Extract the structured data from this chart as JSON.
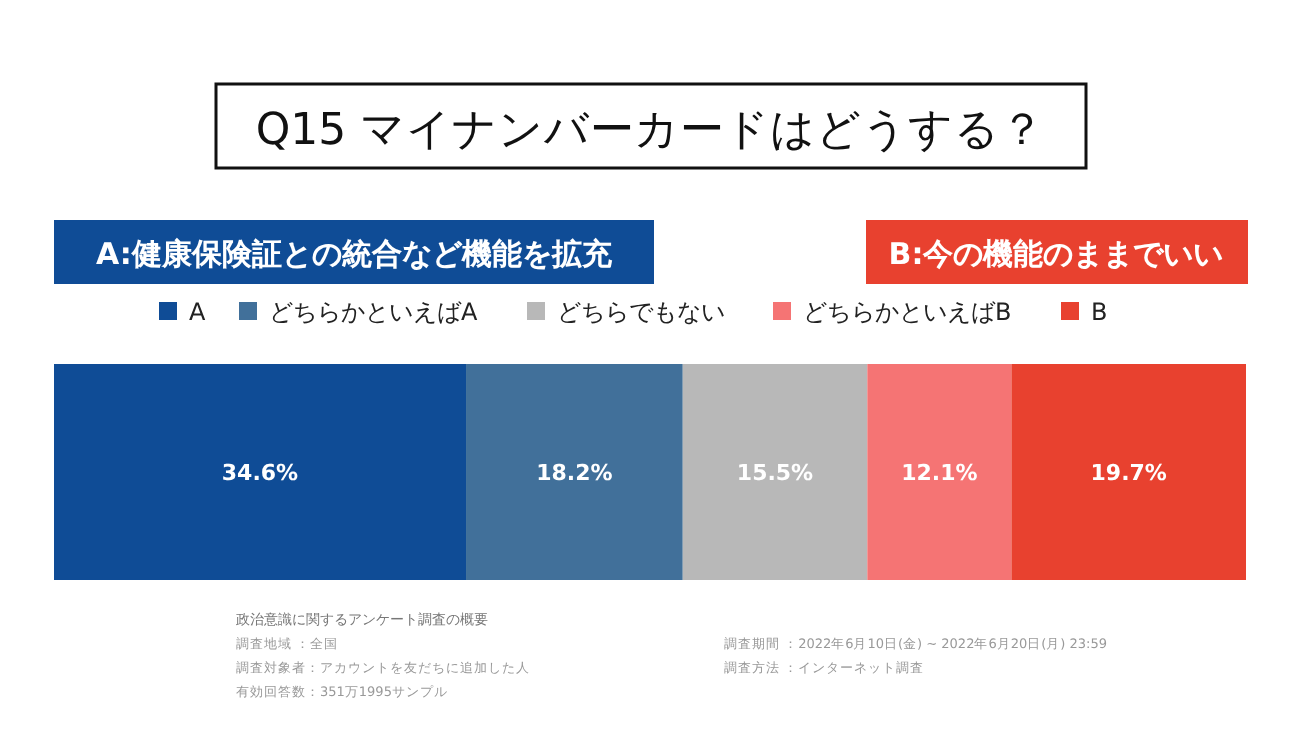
{
  "chart_data": {
    "type": "bar",
    "orientation": "horizontal",
    "stacked": true,
    "title": "Q15 マイナンバーカードはどうする？",
    "categories": [
      null
    ],
    "series": [
      {
        "name": "A",
        "color": "#0f4c96",
        "values": [
          34.6
        ],
        "value_labels": [
          "34.6%"
        ]
      },
      {
        "name": "どちらかといえばA",
        "color": "#41709a",
        "values": [
          18.2
        ],
        "value_labels": [
          "18.2%"
        ]
      },
      {
        "name": "どちらでもない",
        "color": "#b8b8b8",
        "values": [
          15.5
        ],
        "value_labels": [
          "15.5%"
        ]
      },
      {
        "name": "どちらかといえばB",
        "color": "#f57474",
        "values": [
          12.1
        ],
        "value_labels": [
          "12.1%"
        ]
      },
      {
        "name": "B",
        "color": "#e8412f",
        "values": [
          19.7
        ],
        "value_labels": [
          "19.7%"
        ]
      }
    ],
    "xlim": [
      0,
      100.1
    ],
    "legend": "top",
    "annotations": [
      "A:健康保険証との統合など機能を拡充",
      "B:今の機能のままでいい",
      "政治意識に関するアンケート調査の概要",
      "調査地域 ：全国",
      "調査対象者：アカウントを友だちに追加した人",
      "有効回答数：351万1995サンプル",
      "調査期間 ：2022年6月10日(金) ~ 2022年6月20日(月) 23:59",
      "調査方法 ：インターネット調査"
    ]
  }
}
